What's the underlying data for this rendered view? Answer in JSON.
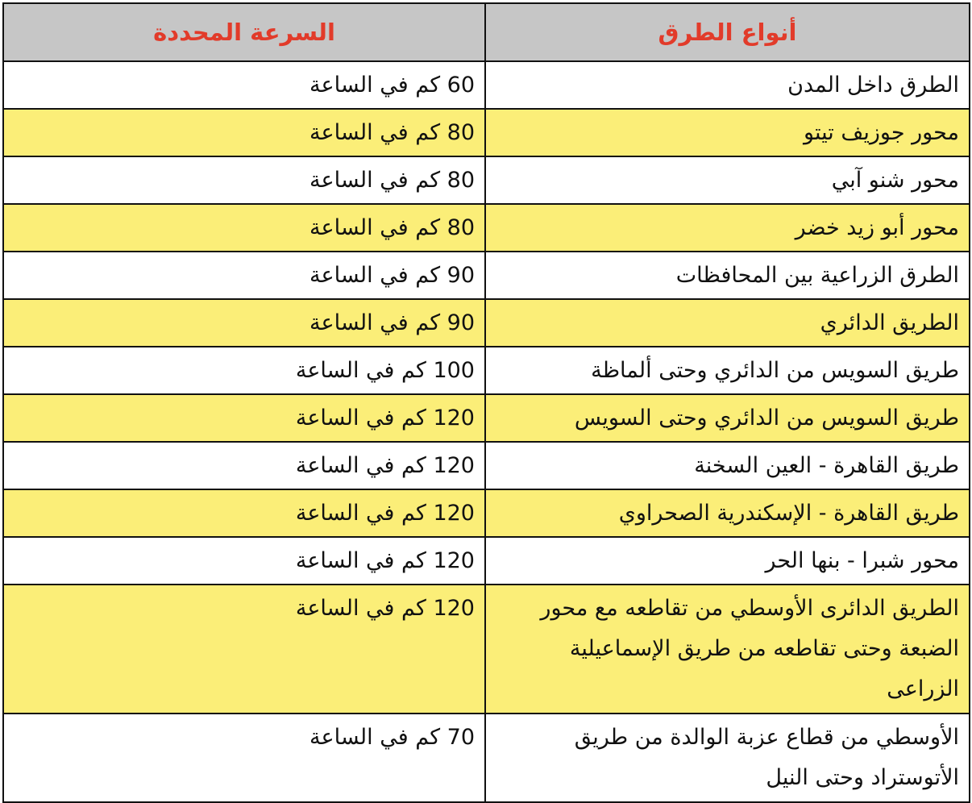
{
  "headers": {
    "road_type": "أنواع الطرق",
    "speed_limit": "السرعة المحددة"
  },
  "colors": {
    "header_bg": "#c6c6c6",
    "header_text": "#e23b2a",
    "highlight_row": "#fbee78"
  },
  "rows": [
    {
      "road": "الطرق داخل المدن",
      "speed": "60 كم في الساعة"
    },
    {
      "road": "محور جوزيف تيتو",
      "speed": "80 كم في الساعة"
    },
    {
      "road": "محور شنو آبي",
      "speed": "80 كم في الساعة"
    },
    {
      "road": "محور أبو زيد خضر",
      "speed": "80 كم في الساعة"
    },
    {
      "road": "الطرق الزراعية بين المحافظات",
      "speed": "90 كم في الساعة"
    },
    {
      "road": "الطريق الدائري",
      "speed": "90 كم في الساعة"
    },
    {
      "road": "طريق السويس من الدائري وحتى ألماظة",
      "speed": "100 كم في الساعة"
    },
    {
      "road": "طريق السويس من الدائري وحتى السويس",
      "speed": "120 كم في الساعة"
    },
    {
      "road": "طريق القاهرة - العين السخنة",
      "speed": "120 كم في الساعة"
    },
    {
      "road": "طريق القاهرة - الإسكندرية الصحراوي",
      "speed": "120 كم في الساعة"
    },
    {
      "road": "محور شبرا - بنها الحر",
      "speed": "120 كم في الساعة"
    },
    {
      "road": "الطريق الدائرى الأوسطي من تقاطعه مع محور الضبعة وحتى تقاطعه من طريق الإسماعيلية الزراعى",
      "speed": "120 كم في الساعة"
    },
    {
      "road": "الأوسطي من قطاع عزبة الوالدة من طريق الأتوستراد وحتى النيل",
      "speed": "70 كم في الساعة"
    }
  ]
}
